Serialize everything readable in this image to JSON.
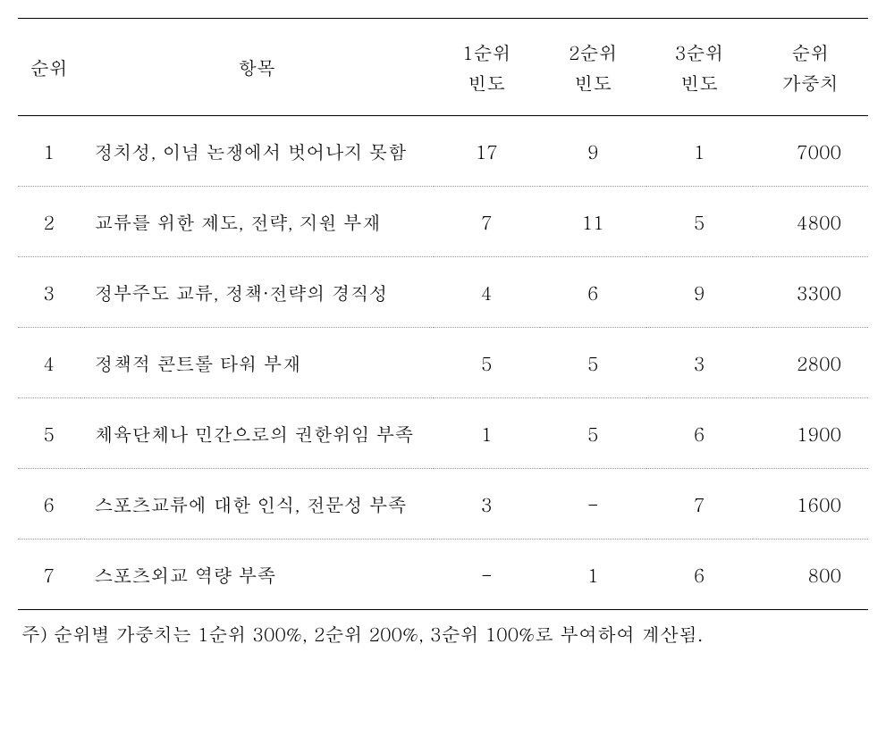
{
  "table": {
    "headers": {
      "rank": "순위",
      "item": "항목",
      "freq1_line1": "1순위",
      "freq1_line2": "빈도",
      "freq2_line1": "2순위",
      "freq2_line2": "빈도",
      "freq3_line1": "3순위",
      "freq3_line2": "빈도",
      "weight_line1": "순위",
      "weight_line2": "가중치"
    },
    "rows": [
      {
        "rank": "1",
        "item": "정치성, 이념 논쟁에서 벗어나지 못함",
        "freq1": "17",
        "freq2": "9",
        "freq3": "1",
        "weight": "7000"
      },
      {
        "rank": "2",
        "item": "교류를 위한 제도, 전략, 지원 부재",
        "freq1": "7",
        "freq2": "11",
        "freq3": "5",
        "weight": "4800"
      },
      {
        "rank": "3",
        "item": "정부주도 교류, 정책·전략의 경직성",
        "freq1": "4",
        "freq2": "6",
        "freq3": "9",
        "weight": "3300"
      },
      {
        "rank": "4",
        "item": "정책적 콘트롤 타워 부재",
        "freq1": "5",
        "freq2": "5",
        "freq3": "3",
        "weight": "2800"
      },
      {
        "rank": "5",
        "item": "체육단체나 민간으로의 권한위임 부족",
        "freq1": "1",
        "freq2": "5",
        "freq3": "6",
        "weight": "1900"
      },
      {
        "rank": "6",
        "item": "스포츠교류에 대한 인식, 전문성 부족",
        "freq1": "3",
        "freq2": "-",
        "freq3": "7",
        "weight": "1600"
      },
      {
        "rank": "7",
        "item": "스포츠외교 역량 부족",
        "freq1": "-",
        "freq2": "1",
        "freq3": "6",
        "weight": "800"
      }
    ],
    "footnote": "주) 순위별 가중치는 1순위 300%, 2순위 200%, 3순위 100%로 부여하여 계산됨."
  },
  "styling": {
    "font_family": "Batang, Malgun Gothic, serif",
    "font_size_pt": 16,
    "background_color": "#ffffff",
    "text_color": "#000000",
    "border_color_solid": "#000000",
    "border_color_dotted": "#999999",
    "border_top_width": 1.5,
    "border_bottom_width": 1.5,
    "row_separator_style": "dotted",
    "col_widths": {
      "rank": 70,
      "item": 400,
      "freq": 120,
      "weight": 130
    },
    "cell_padding_vertical": 24,
    "header_padding_vertical": 22,
    "item_text_align": "left",
    "numeric_text_align": "center",
    "weight_text_align": "right"
  }
}
